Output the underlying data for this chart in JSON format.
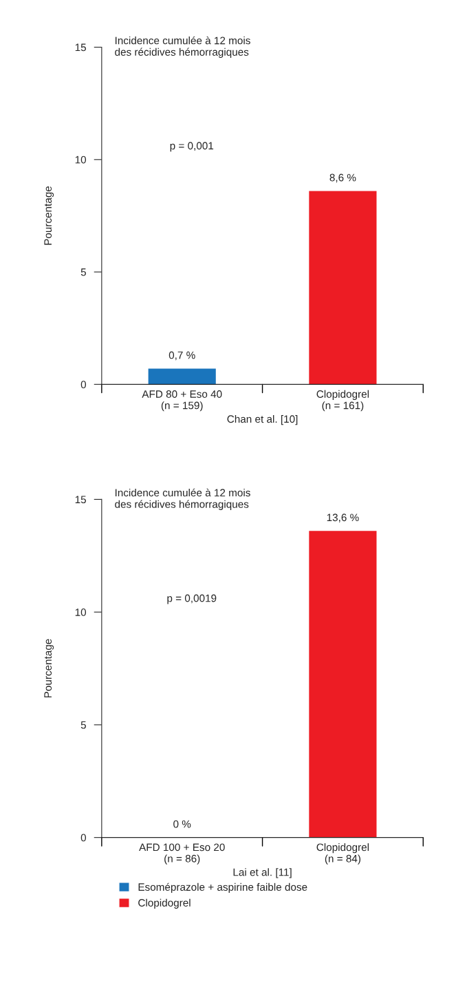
{
  "chart_data": [
    {
      "type": "bar",
      "title": "Incidence cumulée à 12 mois\ndes récidives hémorragiques",
      "xlabel": "Chan et al. [10]",
      "ylabel": "Pourcentage",
      "categories": [
        "AFD 80 + Eso 40\n(n = 159)",
        "Clopidogrel\n(n = 161)"
      ],
      "series": [
        {
          "color": "#1a75bc",
          "values": [
            0.7,
            null
          ],
          "value_labels": [
            "0,7 %",
            null
          ]
        },
        {
          "color": "#ed1c24",
          "values": [
            null,
            8.6
          ],
          "value_labels": [
            null,
            "8,6 %"
          ]
        }
      ],
      "ylim": [
        0,
        15
      ],
      "yticks": [
        0,
        5,
        10,
        15
      ],
      "annotations": [
        "p = 0,001"
      ],
      "grid": false,
      "legend": false
    },
    {
      "type": "bar",
      "title": "Incidence cumulée à 12 mois\ndes récidives hémorragiques",
      "xlabel": "Lai et al. [11]",
      "ylabel": "Pourcentage",
      "categories": [
        "AFD 100 + Eso 20\n(n = 86)",
        "Clopidogrel\n(n = 84)"
      ],
      "series": [
        {
          "name": "Esoméprazole + aspirine faible dose",
          "color": "#1a75bc",
          "values": [
            0,
            null
          ],
          "value_labels": [
            "0 %",
            null
          ]
        },
        {
          "name": "Clopidogrel",
          "color": "#ed1c24",
          "values": [
            null,
            13.6
          ],
          "value_labels": [
            null,
            "13,6 %"
          ]
        }
      ],
      "ylim": [
        0,
        15
      ],
      "yticks": [
        0,
        5,
        10,
        15
      ],
      "annotations": [
        "p = 0,0019"
      ],
      "grid": false,
      "legend": "bottom"
    }
  ]
}
